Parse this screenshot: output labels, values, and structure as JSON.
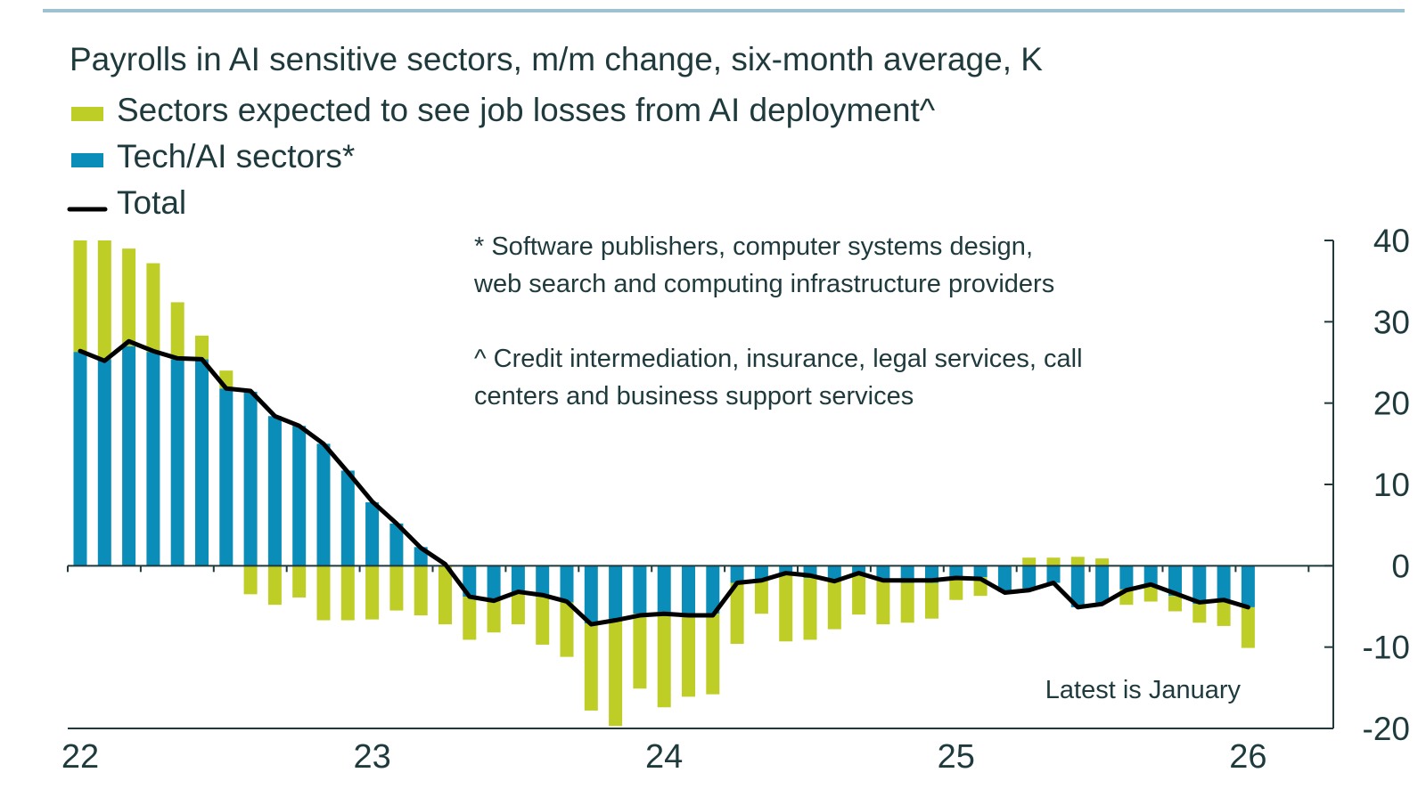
{
  "chart_data": {
    "type": "bar",
    "title": "Payrolls in AI sensitive sectors, m/m change, six-month average, K",
    "stacked": true,
    "legend_placement": "top-left",
    "grid": false,
    "ylim": [
      -20,
      40
    ],
    "yticks": [
      40,
      30,
      20,
      10,
      0,
      -10,
      -20
    ],
    "y_axis_side": "right",
    "x_tick_labels": [
      "22",
      "23",
      "24",
      "25",
      "26"
    ],
    "x_range": [
      "2022-01",
      "2026-01"
    ],
    "frequency": "monthly",
    "series": [
      {
        "name": "Sectors expected to see job losses from AI deployment^",
        "type": "bar",
        "color": "#bfcd27",
        "values": [
          13.8,
          14.6,
          12.0,
          10.9,
          7.0,
          2.9,
          2.2,
          -3.5,
          -4.8,
          -3.9,
          -6.7,
          -6.7,
          -6.6,
          -5.5,
          -6.1,
          -7.2,
          -5.3,
          -3.9,
          -3.8,
          -5.9,
          -6.7,
          -10.7,
          -13.0,
          -9.2,
          -11.5,
          -9.9,
          -9.9,
          -7.5,
          -4.2,
          -8.3,
          -7.6,
          -5.9,
          -4.8,
          -5.4,
          -4.9,
          -4.4,
          -2.6,
          -2.3,
          0.0,
          1.0,
          1.0,
          1.1,
          0.9,
          -1.9,
          -2.1,
          -1.9,
          -2.3,
          -2.9,
          -5.0
        ]
      },
      {
        "name": "Tech/AI sectors*",
        "type": "bar",
        "color": "#0a8db8",
        "values": [
          26.3,
          25.4,
          27.0,
          26.3,
          25.4,
          25.4,
          21.8,
          21.4,
          18.4,
          17.2,
          15.0,
          11.7,
          7.8,
          5.2,
          2.3,
          0.0,
          -3.8,
          -4.3,
          -3.4,
          -3.8,
          -4.5,
          -7.1,
          -6.7,
          -5.9,
          -5.9,
          -6.2,
          -5.9,
          -2.1,
          -1.7,
          -1.0,
          -1.5,
          -1.9,
          -1.2,
          -1.8,
          -2.1,
          -2.1,
          -1.6,
          -1.4,
          -3.2,
          -2.8,
          -2.1,
          -5.1,
          -4.5,
          -2.9,
          -2.3,
          -3.7,
          -4.7,
          -4.5,
          -5.1
        ]
      },
      {
        "name": "Total",
        "type": "line",
        "color": "#000000",
        "values": [
          26.4,
          25.2,
          27.6,
          26.4,
          25.5,
          25.4,
          21.8,
          21.5,
          18.4,
          17.2,
          15.0,
          11.5,
          7.9,
          5.2,
          2.2,
          0.2,
          -3.8,
          -4.3,
          -3.2,
          -3.6,
          -4.4,
          -7.2,
          -6.7,
          -6.1,
          -5.9,
          -6.1,
          -6.1,
          -2.1,
          -1.8,
          -0.9,
          -1.2,
          -1.9,
          -0.9,
          -1.8,
          -1.8,
          -1.8,
          -1.5,
          -1.6,
          -3.3,
          -3.0,
          -2.1,
          -5.1,
          -4.7,
          -3.0,
          -2.3,
          -3.4,
          -4.5,
          -4.2,
          -5.1
        ]
      }
    ],
    "annotations": {
      "note_star_1": "* Software publishers, computer systems design,",
      "note_star_2": "web search and computing infrastructure providers",
      "note_caret_1": "^ Credit intermediation, insurance, legal services, call",
      "note_caret_2": "centers and business support services",
      "latest": "Latest is January"
    }
  },
  "colors": {
    "text": "#1f3a3d",
    "top_rule": "#9cc3cf"
  }
}
